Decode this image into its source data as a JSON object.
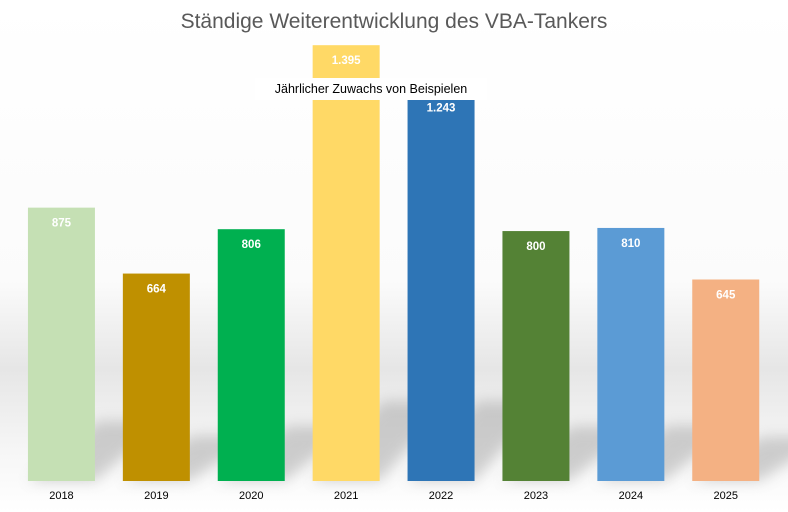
{
  "chart_data": {
    "type": "bar",
    "title": "Ständige Weiterentwicklung des VBA-Tankers",
    "subtitle": "Jährlicher Zuwachs von Beispielen",
    "categories": [
      "2018",
      "2019",
      "2020",
      "2021",
      "2022",
      "2023",
      "2024",
      "2025"
    ],
    "values": [
      875,
      664,
      806,
      1395,
      1243,
      800,
      810,
      645
    ],
    "data_labels": [
      "875",
      "664",
      "806",
      "1.395",
      "1.243",
      "800",
      "810",
      "645"
    ],
    "colors": [
      "#c5e0b4",
      "#bf9000",
      "#00b050",
      "#ffd966",
      "#2e75b6",
      "#548235",
      "#5b9bd5",
      "#f4b183"
    ],
    "label_colors": [
      "#ffffff",
      "#ffffff",
      "#ffffff",
      "#ffffff",
      "#ffffff",
      "#ffffff",
      "#ffffff",
      "#ffffff"
    ],
    "ylim": [
      0,
      1450
    ],
    "grid": false,
    "legend": "none",
    "xlabel": "",
    "ylabel": ""
  }
}
